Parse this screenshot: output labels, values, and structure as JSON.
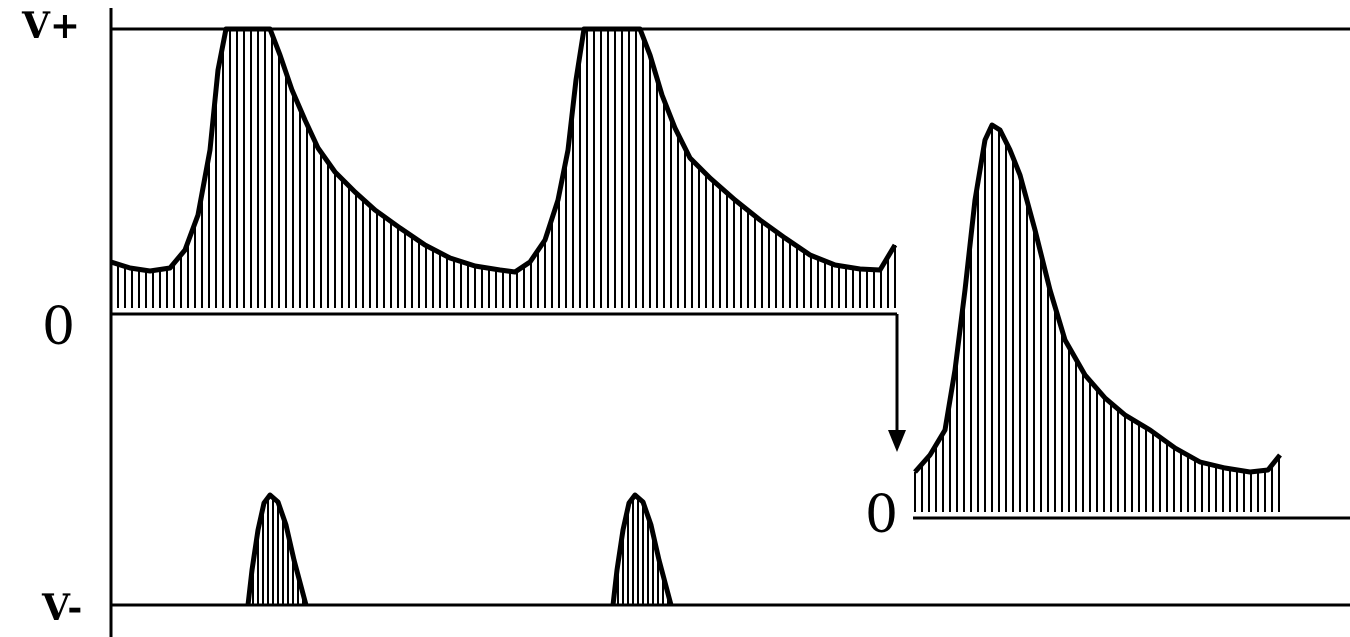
{
  "labels": {
    "v_plus": "V+",
    "zero_main": "0",
    "zero_shifted": "0",
    "v_minus": "V-"
  },
  "colors": {
    "ink": "#000000",
    "background": "#ffffff"
  }
}
